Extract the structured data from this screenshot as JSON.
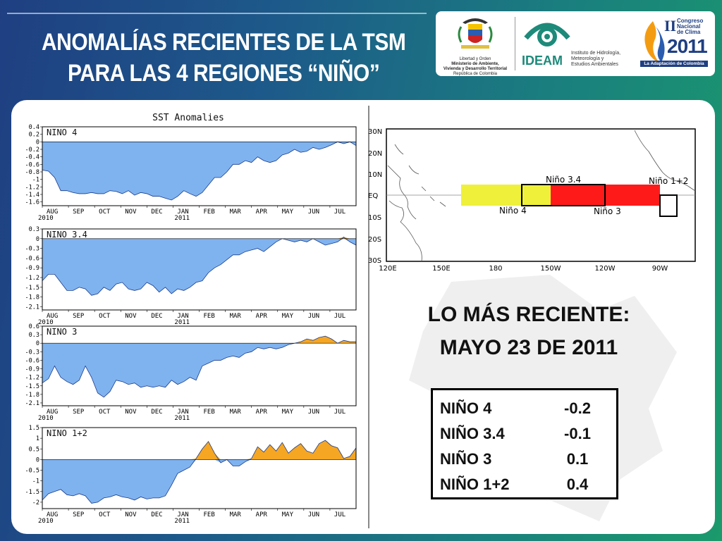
{
  "header": {
    "title_line1": "ANOMALÍAS RECIENTES DE LA TSM",
    "title_line2": "PARA LAS 4 REGIONES “NIÑO”"
  },
  "logos": {
    "ministry_text": [
      "Libertad y Orden",
      "Ministerio de Ambiente,",
      "Vivienda y Desarrollo Territorial",
      "República de Colombia"
    ],
    "ideam_name": "IDEAM",
    "ideam_text": [
      "Instituto de Hidrología,",
      "Meteorología y",
      "Estudios Ambientales"
    ],
    "congress_roman": "II",
    "congress_text": [
      "Congreso",
      "Nacional",
      "de Clima"
    ],
    "congress_year": "2011",
    "congress_banner": "La Adaptación de Colombia"
  },
  "sst_chart": {
    "title": "SST Anomalies",
    "months": [
      "AUG",
      "SEP",
      "OCT",
      "NOV",
      "DEC",
      "JAN",
      "FEB",
      "MAR",
      "APR",
      "MAY",
      "JUN",
      "JUL"
    ],
    "year_start": "2010",
    "year_mid": "2011",
    "colors": {
      "negative": "#7fb3f0",
      "positive": "#f5a623",
      "line": "#1a3a8a"
    }
  },
  "chart_data": [
    {
      "type": "area",
      "title": "NINO 4",
      "ylim": [
        -1.7,
        0.4
      ],
      "yticks": [
        "0.4",
        "0.2",
        "0",
        "-0.2",
        "-0.4",
        "-0.6",
        "-0.8",
        "-1",
        "-1.2",
        "-1.4",
        "-1.6"
      ],
      "values": [
        -0.75,
        -0.78,
        -0.95,
        -1.3,
        -1.3,
        -1.35,
        -1.38,
        -1.38,
        -1.35,
        -1.38,
        -1.38,
        -1.3,
        -1.32,
        -1.38,
        -1.3,
        -1.42,
        -1.35,
        -1.38,
        -1.45,
        -1.45,
        -1.5,
        -1.55,
        -1.45,
        -1.3,
        -1.38,
        -1.45,
        -1.35,
        -1.15,
        -0.95,
        -0.95,
        -0.8,
        -0.6,
        -0.6,
        -0.5,
        -0.55,
        -0.4,
        -0.5,
        -0.55,
        -0.5,
        -0.35,
        -0.3,
        -0.2,
        -0.28,
        -0.25,
        -0.15,
        -0.2,
        -0.15,
        -0.08,
        0.0,
        -0.05,
        0.0,
        -0.1
      ]
    },
    {
      "type": "area",
      "title": "NINO 3.4",
      "ylim": [
        -2.2,
        0.3
      ],
      "yticks": [
        "0.3",
        "0",
        "-0.3",
        "-0.6",
        "-0.9",
        "-1.2",
        "-1.5",
        "-1.8",
        "-2.1"
      ],
      "values": [
        -1.3,
        -1.1,
        -1.1,
        -1.35,
        -1.6,
        -1.6,
        -1.5,
        -1.55,
        -1.75,
        -1.7,
        -1.5,
        -1.6,
        -1.4,
        -1.35,
        -1.55,
        -1.6,
        -1.55,
        -1.35,
        -1.45,
        -1.65,
        -1.5,
        -1.7,
        -1.55,
        -1.6,
        -1.5,
        -1.35,
        -1.3,
        -1.05,
        -0.9,
        -0.8,
        -0.65,
        -0.5,
        -0.5,
        -0.4,
        -0.35,
        -0.3,
        -0.4,
        -0.25,
        -0.1,
        0.0,
        -0.05,
        -0.1,
        -0.05,
        -0.1,
        0.0,
        -0.1,
        -0.2,
        -0.15,
        -0.1,
        0.05,
        -0.1,
        -0.2
      ]
    },
    {
      "type": "area",
      "title": "NINO 3",
      "ylim": [
        -2.2,
        0.6
      ],
      "yticks": [
        "0.6",
        "0.3",
        "0",
        "-0.3",
        "-0.6",
        "-0.9",
        "-1.2",
        "-1.5",
        "-1.8",
        "-2.1"
      ],
      "values": [
        -1.4,
        -1.25,
        -0.8,
        -1.2,
        -1.35,
        -1.45,
        -1.3,
        -0.8,
        -1.2,
        -1.75,
        -1.9,
        -1.7,
        -1.3,
        -1.35,
        -1.45,
        -1.4,
        -1.55,
        -1.5,
        -1.55,
        -1.5,
        -1.55,
        -1.3,
        -1.45,
        -1.35,
        -1.2,
        -1.3,
        -0.8,
        -0.7,
        -0.6,
        -0.6,
        -0.5,
        -0.45,
        -0.5,
        -0.35,
        -0.3,
        -0.15,
        -0.2,
        -0.15,
        -0.2,
        -0.15,
        -0.05,
        0.0,
        0.05,
        0.15,
        0.1,
        0.2,
        0.25,
        0.15,
        0.0,
        0.1,
        0.05,
        0.05
      ]
    },
    {
      "type": "area",
      "title": "NINO 1+2",
      "ylim": [
        -2.3,
        1.5
      ],
      "yticks": [
        "1.5",
        "1",
        "0.5",
        "0",
        "-0.5",
        "-1",
        "-1.5",
        "-2"
      ],
      "values": [
        -1.9,
        -1.6,
        -1.5,
        -1.4,
        -1.65,
        -1.7,
        -1.6,
        -1.7,
        -2.05,
        -2.0,
        -1.8,
        -1.75,
        -1.65,
        -1.75,
        -1.8,
        -1.9,
        -1.75,
        -1.85,
        -1.8,
        -1.8,
        -1.7,
        -1.2,
        -0.65,
        -0.5,
        -0.35,
        0.05,
        0.5,
        0.85,
        0.3,
        -0.15,
        0.0,
        -0.3,
        -0.3,
        -0.1,
        0.05,
        0.6,
        0.35,
        0.7,
        0.4,
        0.8,
        0.3,
        0.55,
        0.75,
        0.4,
        0.3,
        0.75,
        0.9,
        0.65,
        0.55,
        0.05,
        0.15,
        0.55
      ]
    }
  ],
  "map": {
    "lat_labels": [
      "30N",
      "20N",
      "10N",
      "EQ",
      "10S",
      "20S",
      "30S"
    ],
    "lon_labels": [
      "120E",
      "150E",
      "180",
      "150W",
      "120W",
      "90W"
    ],
    "regions": {
      "nino34": "Niño 3.4",
      "nino12": "Niño 1+2",
      "nino4": "Niño 4",
      "nino3": "Niño 3"
    },
    "colors": {
      "yellow": "#eef03a",
      "red": "#ff1a1a"
    }
  },
  "recent": {
    "heading": "LO MÁS RECIENTE:",
    "date": "MAYO 23 DE 2011"
  },
  "table": [
    {
      "region": "NIÑO 4",
      "value": "-0.2"
    },
    {
      "region": "NIÑO 3.4",
      "value": "-0.1"
    },
    {
      "region": "NIÑO 3",
      "value": "0.1"
    },
    {
      "region": "NIÑO 1+2",
      "value": "0.4"
    }
  ]
}
